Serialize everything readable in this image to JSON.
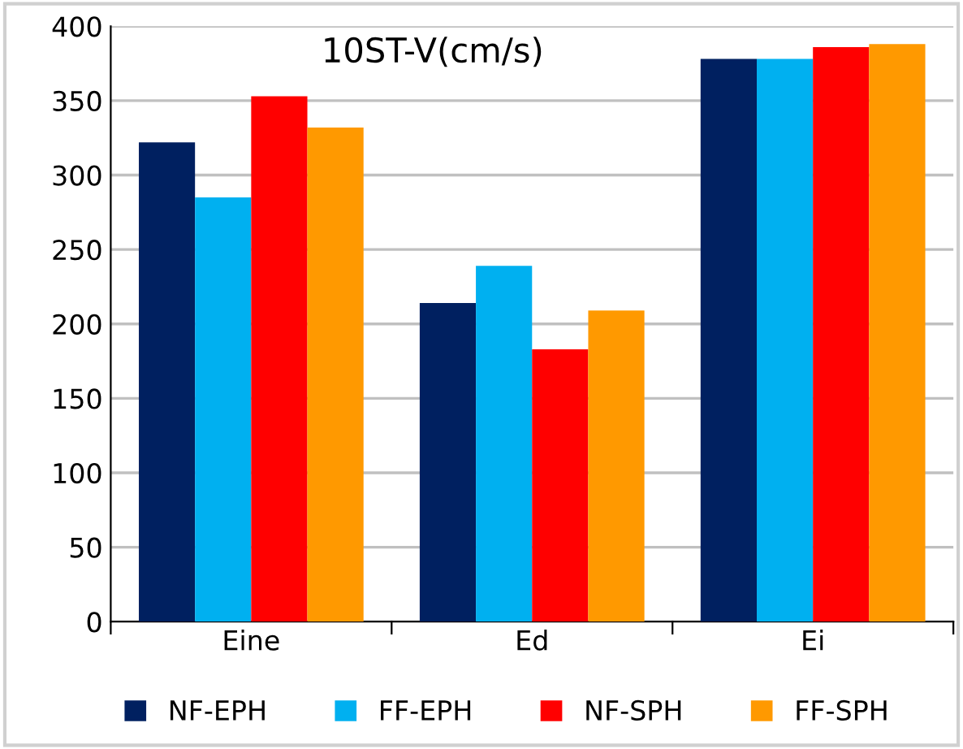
{
  "chart_data": {
    "type": "bar",
    "title": "10ST-V(cm/s)",
    "categories": [
      "Eine",
      "Ed",
      "Ei"
    ],
    "series": [
      {
        "name": "NF-EPH",
        "color": "#002060",
        "values": [
          322,
          214,
          378
        ]
      },
      {
        "name": "FF-EPH",
        "color": "#00b0f0",
        "values": [
          285,
          239,
          378
        ]
      },
      {
        "name": "NF-SPH",
        "color": "#ff0000",
        "values": [
          353,
          183,
          386
        ]
      },
      {
        "name": "FF-SPH",
        "color": "#ff9900",
        "values": [
          332,
          209,
          388
        ]
      }
    ],
    "ylim": [
      0,
      400
    ],
    "yticks": [
      0,
      50,
      100,
      150,
      200,
      250,
      300,
      350,
      400
    ],
    "grid": "y",
    "legend": "bottom"
  }
}
